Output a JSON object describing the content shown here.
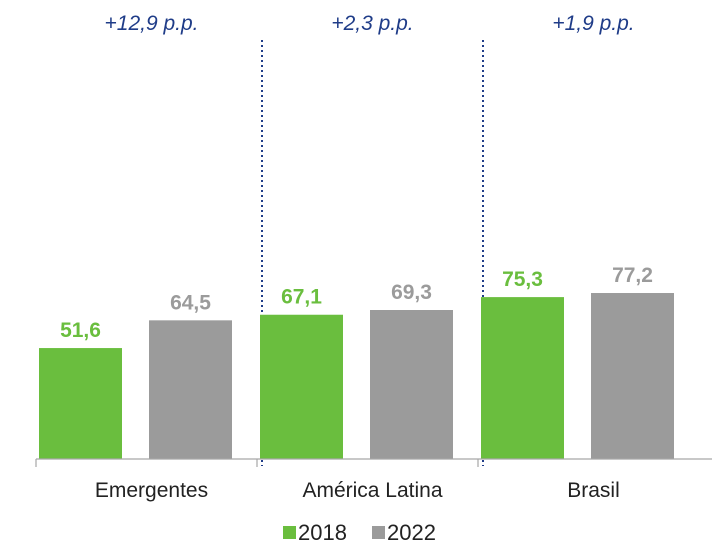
{
  "chart_data": {
    "type": "bar",
    "categories": [
      "Emergentes",
      "América Latina",
      "Brasil"
    ],
    "series": [
      {
        "name": "2018",
        "values": [
          51.6,
          67.1,
          75.3
        ],
        "labels": [
          "51,6",
          "67,1",
          "75,3"
        ]
      },
      {
        "name": "2022",
        "values": [
          64.5,
          69.3,
          77.2
        ],
        "labels": [
          "64,5",
          "69,3",
          "77,2"
        ]
      }
    ],
    "annotations": [
      "+12,9 p.p.",
      "+2,3 p.p.",
      "+1,9 p.p."
    ],
    "ylim": [
      0,
      100
    ],
    "legend_position": "bottom",
    "grid": false
  },
  "colors": {
    "series_2018": "#6ABE3E",
    "series_2022": "#9B9B9B",
    "annotation": "#1F3C88",
    "separator": "#1F3C88",
    "axis": "#A6A6A6",
    "text": "#222222"
  }
}
